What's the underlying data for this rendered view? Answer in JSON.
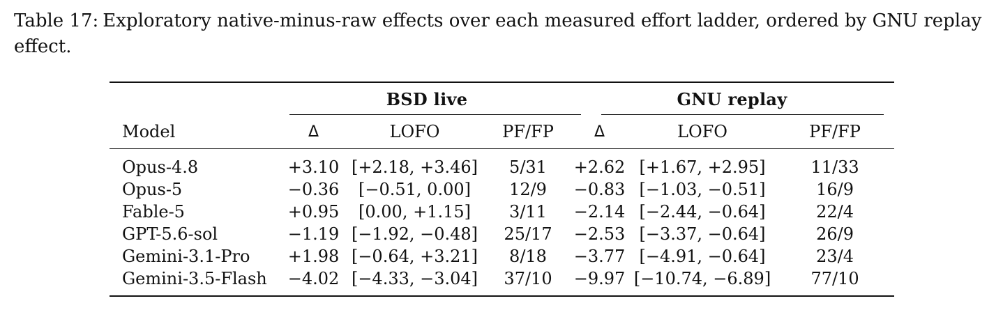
{
  "caption": {
    "label": "Table 17:",
    "text": "Exploratory native-minus-raw effects over each measured effort ladder, ordered by GNU replay effect."
  },
  "table": {
    "groups": [
      "BSD live",
      "GNU replay"
    ],
    "headers": {
      "model": "Model",
      "delta": "Δ",
      "lofo": "LOFO",
      "pffp": "PF/FP"
    },
    "rows": [
      {
        "model": "Opus-4.8",
        "bsd_delta": "+3.10",
        "bsd_lofo": "[+2.18, +3.46]",
        "bsd_pffp": "5/31",
        "gnu_delta": "+2.62",
        "gnu_lofo": "[+1.67, +2.95]",
        "gnu_pffp": "11/33"
      },
      {
        "model": "Opus-5",
        "bsd_delta": "−0.36",
        "bsd_lofo": "[−0.51, 0.00]",
        "bsd_pffp": "12/9",
        "gnu_delta": "−0.83",
        "gnu_lofo": "[−1.03, −0.51]",
        "gnu_pffp": "16/9"
      },
      {
        "model": "Fable-5",
        "bsd_delta": "+0.95",
        "bsd_lofo": "[0.00, +1.15]",
        "bsd_pffp": "3/11",
        "gnu_delta": "−2.14",
        "gnu_lofo": "[−2.44, −0.64]",
        "gnu_pffp": "22/4"
      },
      {
        "model": "GPT-5.6-sol",
        "bsd_delta": "−1.19",
        "bsd_lofo": "[−1.92, −0.48]",
        "bsd_pffp": "25/17",
        "gnu_delta": "−2.53",
        "gnu_lofo": "[−3.37, −0.64]",
        "gnu_pffp": "26/9"
      },
      {
        "model": "Gemini-3.1-Pro",
        "bsd_delta": "+1.98",
        "bsd_lofo": "[−0.64, +3.21]",
        "bsd_pffp": "8/18",
        "gnu_delta": "−3.77",
        "gnu_lofo": "[−4.91, −0.64]",
        "gnu_pffp": "23/4"
      },
      {
        "model": "Gemini-3.5-Flash",
        "bsd_delta": "−4.02",
        "bsd_lofo": "[−4.33, −3.04]",
        "bsd_pffp": "37/10",
        "gnu_delta": "−9.97",
        "gnu_lofo": "[−10.74, −6.89]",
        "gnu_pffp": "77/10"
      }
    ]
  }
}
